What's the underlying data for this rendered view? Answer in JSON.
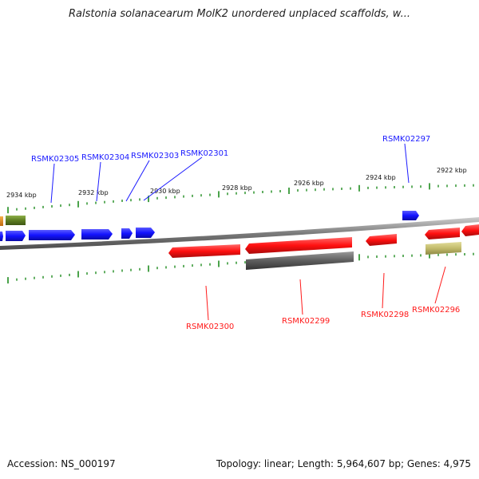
{
  "title": "Ralstonia solanacearum MolK2 unordered unplaced scaffolds, w...",
  "footer": {
    "accession": "Accession: NS_000197",
    "summary": "Topology: linear; Length: 5,964,607 bp; Genes: 4,975"
  },
  "colors": {
    "forward_gene": "#1a1aff",
    "reverse_gene": "#ff1a1a",
    "grey_feature": "#666666",
    "olive_feature": "#6b8e23",
    "khaki_feature": "#c8c27a",
    "orange_feature": "#e08a1e",
    "tick": "#1e8c1e",
    "backbone": "#8a8a8a"
  },
  "kbp_labels": [
    "2934 kbp",
    "2932 kbp",
    "2930 kbp",
    "2928 kbp",
    "2926 kbp",
    "2924 kbp",
    "2922 kbp"
  ],
  "forward_genes": [
    "RSMK02305",
    "RSMK02304",
    "RSMK02303",
    "RSMK02301",
    "RSMK02297"
  ],
  "reverse_genes": [
    "RSMK02300",
    "RSMK02299",
    "RSMK02298",
    "RSMK02296"
  ]
}
